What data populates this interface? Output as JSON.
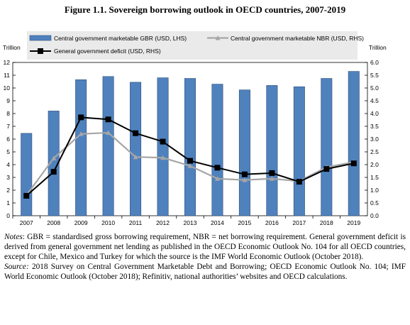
{
  "figure": {
    "title": "Figure 1.1. Sovereign borrowing outlook in OECD countries, 2007-2019",
    "notes_label": "Notes",
    "notes_text": ": GBR = standardised gross borrowing requirement, NBR = net borrowing requirement. General government deficit is derived from general government net lending as published in the OECD Economic Outlook No. 104 for all OECD countries, except for Chile, Mexico and Turkey for which the source is the IMF World Economic Outlook (October 2018).",
    "source_label": "Source:",
    "source_text": " 2018 Survey on Central Government Marketable Debt and Borrowing; OECD Economic Outlook No. 104; IMF World Economic Outlook (October 2018); Refinitiv, national authorities’ websites and OECD calculations."
  },
  "chart_data": {
    "type": "bar",
    "categories": [
      "2007",
      "2008",
      "2009",
      "2010",
      "2011",
      "2012",
      "2013",
      "2014",
      "2015",
      "2016",
      "2017",
      "2018",
      "2019"
    ],
    "ylabel_left": "Trillion",
    "ylabel_right": "Trillion",
    "ylim_left": [
      0,
      12
    ],
    "ylim_right": [
      0,
      6.0
    ],
    "yticks_left": [
      "0",
      "1",
      "2",
      "3",
      "4",
      "5",
      "6",
      "7",
      "8",
      "9",
      "10",
      "11",
      "12"
    ],
    "yticks_right": [
      "0.0",
      "0.5",
      "1.0",
      "1.5",
      "2.0",
      "2.5",
      "3.0",
      "3.5",
      "4.0",
      "4.5",
      "5.0",
      "5.5",
      "6.0"
    ],
    "legend_position": "top",
    "grid": false,
    "series": [
      {
        "name": "Central government marketable GBR (USD, LHS)",
        "kind": "bar",
        "axis": "left",
        "color": "#4f81bd",
        "values": [
          6.45,
          8.2,
          10.65,
          10.9,
          10.45,
          10.8,
          10.75,
          10.3,
          9.85,
          10.2,
          10.1,
          10.75,
          11.3
        ]
      },
      {
        "name": "Central government marketable NBR (USD, RHS)",
        "kind": "line",
        "axis": "right",
        "color": "#a6a6a6",
        "values": [
          0.8,
          2.25,
          3.2,
          3.25,
          2.3,
          2.27,
          1.95,
          1.45,
          1.4,
          1.45,
          1.35,
          1.9,
          2.1
        ]
      },
      {
        "name": "General government deficit (USD, RHS)",
        "kind": "line",
        "axis": "right",
        "color": "#000000",
        "values": [
          0.78,
          1.72,
          3.85,
          3.77,
          3.23,
          2.9,
          2.15,
          1.88,
          1.62,
          1.67,
          1.33,
          1.83,
          2.05
        ]
      }
    ]
  }
}
